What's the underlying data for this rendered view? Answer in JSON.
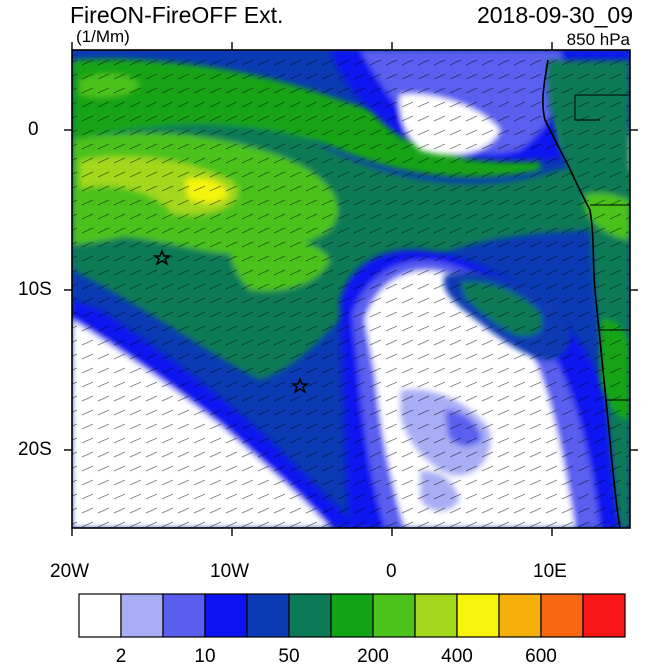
{
  "title": "FireON-FireOFF Ext.",
  "datetime": "2018-09-30_09",
  "units": "(1/Mm)",
  "level": "850 hPa",
  "axes": {
    "lat_labels": [
      "0",
      "10S",
      "20S"
    ],
    "lon_labels": [
      "20W",
      "10W",
      "0",
      "10E"
    ]
  },
  "markers": [
    {
      "name": "star-1",
      "lon": "14.5W",
      "lat": "8S"
    },
    {
      "name": "star-2",
      "lon": "6W",
      "lat": "16S"
    }
  ],
  "colorbar": {
    "colors": [
      "#ffffff",
      "#a9adf5",
      "#5a5eef",
      "#0c12f0",
      "#0a3bb4",
      "#0b7a56",
      "#12a417",
      "#4cc21d",
      "#a3d81c",
      "#f5f40a",
      "#f6ae0a",
      "#f76610",
      "#f71515"
    ],
    "labels": [
      "2",
      "10",
      "50",
      "200",
      "400",
      "600"
    ]
  }
}
